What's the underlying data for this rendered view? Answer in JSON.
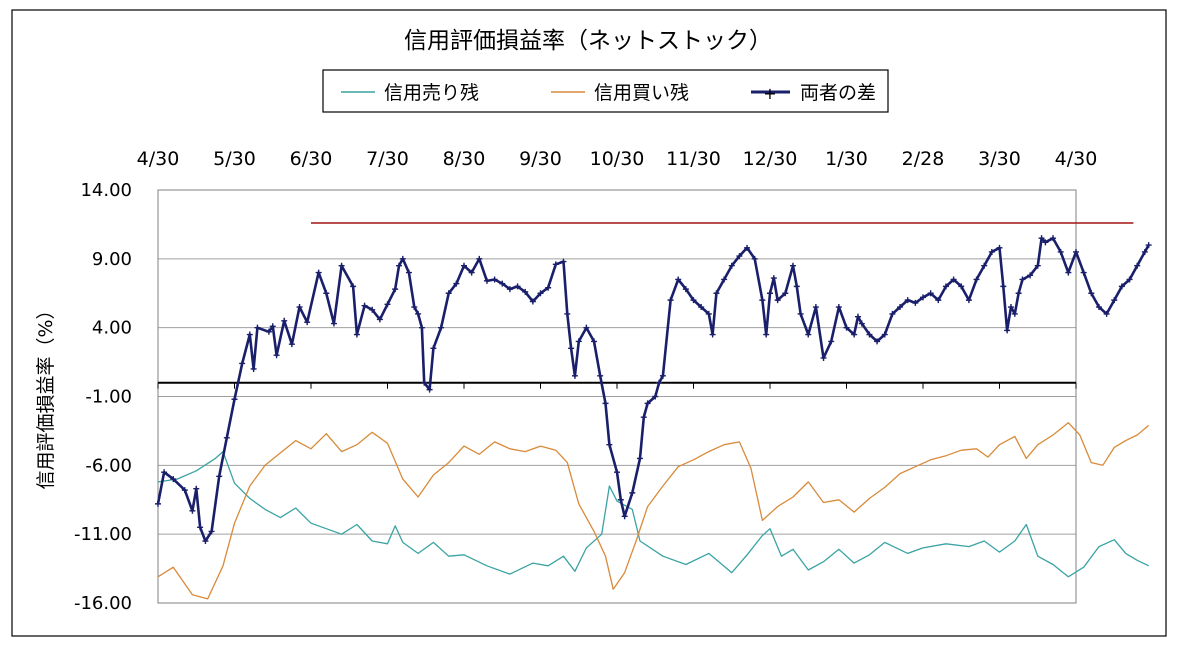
{
  "chart_data": {
    "type": "line",
    "title": "信用評価損益率（ネットストック）",
    "xlabel": "",
    "ylabel": "信用評価損益率（%）",
    "ylim": [
      -16,
      14
    ],
    "yticks": [
      "14.00",
      "9.00",
      "4.00",
      "-1.00",
      "-6.00",
      "-11.00",
      "-16.00"
    ],
    "xticks": [
      "4/30",
      "5/30",
      "6/30",
      "7/30",
      "8/30",
      "9/30",
      "10/30",
      "11/30",
      "12/30",
      "1/30",
      "2/28",
      "3/30",
      "4/30"
    ],
    "legend_position": "top",
    "grid": true,
    "reference_line": {
      "y": 11.6,
      "from_month": 2.0,
      "to_month": 12.75,
      "color": "#a31515"
    },
    "series": [
      {
        "name": "信用売り残",
        "color": "#3aa3a3",
        "marker": "none",
        "points": [
          [
            0.0,
            -7.2
          ],
          [
            0.25,
            -7.0
          ],
          [
            0.5,
            -6.4
          ],
          [
            0.75,
            -5.5
          ],
          [
            0.85,
            -5.0
          ],
          [
            1.0,
            -7.3
          ],
          [
            1.2,
            -8.4
          ],
          [
            1.4,
            -9.2
          ],
          [
            1.6,
            -9.8
          ],
          [
            1.8,
            -9.1
          ],
          [
            2.0,
            -10.2
          ],
          [
            2.2,
            -10.6
          ],
          [
            2.4,
            -11.0
          ],
          [
            2.6,
            -10.3
          ],
          [
            2.8,
            -11.5
          ],
          [
            3.0,
            -11.7
          ],
          [
            3.1,
            -10.4
          ],
          [
            3.2,
            -11.6
          ],
          [
            3.4,
            -12.4
          ],
          [
            3.6,
            -11.6
          ],
          [
            3.8,
            -12.6
          ],
          [
            4.0,
            -12.5
          ],
          [
            4.3,
            -13.3
          ],
          [
            4.6,
            -13.9
          ],
          [
            4.9,
            -13.1
          ],
          [
            5.1,
            -13.3
          ],
          [
            5.3,
            -12.6
          ],
          [
            5.45,
            -13.7
          ],
          [
            5.6,
            -12.0
          ],
          [
            5.8,
            -11.0
          ],
          [
            5.9,
            -7.5
          ],
          [
            6.0,
            -8.6
          ],
          [
            6.2,
            -9.2
          ],
          [
            6.3,
            -11.5
          ],
          [
            6.6,
            -12.6
          ],
          [
            6.9,
            -13.2
          ],
          [
            7.2,
            -12.4
          ],
          [
            7.5,
            -13.8
          ],
          [
            7.7,
            -12.5
          ],
          [
            7.9,
            -11.1
          ],
          [
            8.0,
            -10.6
          ],
          [
            8.15,
            -12.6
          ],
          [
            8.3,
            -12.1
          ],
          [
            8.5,
            -13.6
          ],
          [
            8.7,
            -13.0
          ],
          [
            8.9,
            -12.1
          ],
          [
            9.1,
            -13.1
          ],
          [
            9.3,
            -12.5
          ],
          [
            9.5,
            -11.6
          ],
          [
            9.8,
            -12.4
          ],
          [
            10.0,
            -12.0
          ],
          [
            10.3,
            -11.7
          ],
          [
            10.6,
            -11.9
          ],
          [
            10.8,
            -11.5
          ],
          [
            11.0,
            -12.3
          ],
          [
            11.2,
            -11.5
          ],
          [
            11.35,
            -10.3
          ],
          [
            11.5,
            -12.6
          ],
          [
            11.7,
            -13.2
          ],
          [
            11.9,
            -14.1
          ],
          [
            12.1,
            -13.4
          ],
          [
            12.3,
            -11.9
          ],
          [
            12.5,
            -11.4
          ],
          [
            12.65,
            -12.4
          ],
          [
            12.8,
            -12.9
          ],
          [
            12.95,
            -13.3
          ]
        ]
      },
      {
        "name": "信用買い残",
        "color": "#d98a3a",
        "marker": "none",
        "points": [
          [
            0.0,
            -14.1
          ],
          [
            0.2,
            -13.4
          ],
          [
            0.45,
            -15.4
          ],
          [
            0.65,
            -15.7
          ],
          [
            0.85,
            -13.3
          ],
          [
            1.0,
            -10.2
          ],
          [
            1.2,
            -7.5
          ],
          [
            1.4,
            -6.0
          ],
          [
            1.6,
            -5.1
          ],
          [
            1.8,
            -4.2
          ],
          [
            2.0,
            -4.8
          ],
          [
            2.2,
            -3.7
          ],
          [
            2.4,
            -5.0
          ],
          [
            2.6,
            -4.5
          ],
          [
            2.8,
            -3.6
          ],
          [
            3.0,
            -4.4
          ],
          [
            3.2,
            -7.0
          ],
          [
            3.4,
            -8.3
          ],
          [
            3.6,
            -6.7
          ],
          [
            3.8,
            -5.8
          ],
          [
            4.0,
            -4.6
          ],
          [
            4.2,
            -5.2
          ],
          [
            4.4,
            -4.3
          ],
          [
            4.6,
            -4.8
          ],
          [
            4.8,
            -5.0
          ],
          [
            5.0,
            -4.6
          ],
          [
            5.2,
            -4.9
          ],
          [
            5.35,
            -5.8
          ],
          [
            5.5,
            -8.8
          ],
          [
            5.7,
            -10.8
          ],
          [
            5.85,
            -12.6
          ],
          [
            5.95,
            -15.0
          ],
          [
            6.1,
            -13.8
          ],
          [
            6.25,
            -11.5
          ],
          [
            6.4,
            -9.0
          ],
          [
            6.6,
            -7.5
          ],
          [
            6.8,
            -6.1
          ],
          [
            7.0,
            -5.6
          ],
          [
            7.2,
            -5.0
          ],
          [
            7.4,
            -4.5
          ],
          [
            7.6,
            -4.3
          ],
          [
            7.75,
            -6.2
          ],
          [
            7.9,
            -10.0
          ],
          [
            8.1,
            -9.0
          ],
          [
            8.3,
            -8.3
          ],
          [
            8.5,
            -7.2
          ],
          [
            8.7,
            -8.7
          ],
          [
            8.9,
            -8.5
          ],
          [
            9.1,
            -9.4
          ],
          [
            9.3,
            -8.4
          ],
          [
            9.5,
            -7.6
          ],
          [
            9.7,
            -6.6
          ],
          [
            9.9,
            -6.1
          ],
          [
            10.1,
            -5.6
          ],
          [
            10.3,
            -5.3
          ],
          [
            10.5,
            -4.9
          ],
          [
            10.7,
            -4.8
          ],
          [
            10.85,
            -5.4
          ],
          [
            11.0,
            -4.5
          ],
          [
            11.2,
            -3.9
          ],
          [
            11.35,
            -5.5
          ],
          [
            11.5,
            -4.5
          ],
          [
            11.7,
            -3.8
          ],
          [
            11.9,
            -2.9
          ],
          [
            12.05,
            -3.8
          ],
          [
            12.2,
            -5.8
          ],
          [
            12.35,
            -6.0
          ],
          [
            12.5,
            -4.7
          ],
          [
            12.65,
            -4.2
          ],
          [
            12.8,
            -3.8
          ],
          [
            12.95,
            -3.1
          ]
        ]
      },
      {
        "name": "両者の差",
        "color": "#1a1f6b",
        "marker": "cross",
        "points": [
          [
            0.0,
            -8.8
          ],
          [
            0.08,
            -6.5
          ],
          [
            0.2,
            -7.0
          ],
          [
            0.35,
            -7.8
          ],
          [
            0.45,
            -9.3
          ],
          [
            0.5,
            -7.7
          ],
          [
            0.55,
            -10.5
          ],
          [
            0.62,
            -11.5
          ],
          [
            0.7,
            -10.8
          ],
          [
            0.8,
            -6.8
          ],
          [
            0.9,
            -4.0
          ],
          [
            1.0,
            -1.2
          ],
          [
            1.1,
            1.4
          ],
          [
            1.2,
            3.5
          ],
          [
            1.25,
            1.0
          ],
          [
            1.3,
            4.0
          ],
          [
            1.45,
            3.7
          ],
          [
            1.5,
            4.1
          ],
          [
            1.55,
            2.0
          ],
          [
            1.65,
            4.5
          ],
          [
            1.75,
            2.8
          ],
          [
            1.85,
            5.5
          ],
          [
            1.95,
            4.4
          ],
          [
            2.1,
            8.0
          ],
          [
            2.2,
            6.5
          ],
          [
            2.3,
            4.3
          ],
          [
            2.4,
            8.5
          ],
          [
            2.55,
            7.0
          ],
          [
            2.6,
            3.5
          ],
          [
            2.7,
            5.6
          ],
          [
            2.8,
            5.3
          ],
          [
            2.9,
            4.6
          ],
          [
            3.0,
            5.7
          ],
          [
            3.1,
            6.8
          ],
          [
            3.15,
            8.5
          ],
          [
            3.2,
            9.0
          ],
          [
            3.28,
            8.0
          ],
          [
            3.35,
            5.5
          ],
          [
            3.4,
            5.0
          ],
          [
            3.45,
            4.0
          ],
          [
            3.48,
            0.0
          ],
          [
            3.55,
            -0.5
          ],
          [
            3.6,
            2.5
          ],
          [
            3.7,
            4.0
          ],
          [
            3.8,
            6.5
          ],
          [
            3.9,
            7.2
          ],
          [
            4.0,
            8.5
          ],
          [
            4.1,
            8.0
          ],
          [
            4.2,
            9.0
          ],
          [
            4.3,
            7.4
          ],
          [
            4.4,
            7.5
          ],
          [
            4.5,
            7.2
          ],
          [
            4.6,
            6.8
          ],
          [
            4.7,
            7.0
          ],
          [
            4.8,
            6.6
          ],
          [
            4.9,
            5.9
          ],
          [
            5.0,
            6.5
          ],
          [
            5.1,
            6.9
          ],
          [
            5.2,
            8.6
          ],
          [
            5.3,
            8.8
          ],
          [
            5.35,
            5.0
          ],
          [
            5.4,
            2.5
          ],
          [
            5.45,
            0.5
          ],
          [
            5.5,
            3.0
          ],
          [
            5.6,
            4.0
          ],
          [
            5.7,
            3.0
          ],
          [
            5.78,
            0.5
          ],
          [
            5.85,
            -1.5
          ],
          [
            5.9,
            -4.5
          ],
          [
            6.0,
            -6.5
          ],
          [
            6.05,
            -8.5
          ],
          [
            6.1,
            -9.7
          ],
          [
            6.2,
            -8.0
          ],
          [
            6.3,
            -5.5
          ],
          [
            6.35,
            -2.5
          ],
          [
            6.4,
            -1.5
          ],
          [
            6.5,
            -1.0
          ],
          [
            6.55,
            0.0
          ],
          [
            6.6,
            0.5
          ],
          [
            6.7,
            6.0
          ],
          [
            6.8,
            7.5
          ],
          [
            6.9,
            6.8
          ],
          [
            7.0,
            6.0
          ],
          [
            7.1,
            5.5
          ],
          [
            7.2,
            5.0
          ],
          [
            7.25,
            3.5
          ],
          [
            7.3,
            6.5
          ],
          [
            7.4,
            7.5
          ],
          [
            7.5,
            8.5
          ],
          [
            7.6,
            9.2
          ],
          [
            7.7,
            9.8
          ],
          [
            7.8,
            9.0
          ],
          [
            7.9,
            6.0
          ],
          [
            7.95,
            3.5
          ],
          [
            8.0,
            6.5
          ],
          [
            8.05,
            7.6
          ],
          [
            8.1,
            6.0
          ],
          [
            8.2,
            6.5
          ],
          [
            8.3,
            8.5
          ],
          [
            8.35,
            7.0
          ],
          [
            8.4,
            5.0
          ],
          [
            8.5,
            3.5
          ],
          [
            8.6,
            5.5
          ],
          [
            8.7,
            1.8
          ],
          [
            8.8,
            3.0
          ],
          [
            8.9,
            5.5
          ],
          [
            9.0,
            4.0
          ],
          [
            9.1,
            3.5
          ],
          [
            9.15,
            4.8
          ],
          [
            9.2,
            4.3
          ],
          [
            9.3,
            3.5
          ],
          [
            9.4,
            3.0
          ],
          [
            9.5,
            3.5
          ],
          [
            9.6,
            5.0
          ],
          [
            9.7,
            5.5
          ],
          [
            9.8,
            6.0
          ],
          [
            9.9,
            5.8
          ],
          [
            10.0,
            6.2
          ],
          [
            10.1,
            6.5
          ],
          [
            10.2,
            6.0
          ],
          [
            10.3,
            7.0
          ],
          [
            10.4,
            7.5
          ],
          [
            10.5,
            7.0
          ],
          [
            10.6,
            6.0
          ],
          [
            10.7,
            7.5
          ],
          [
            10.8,
            8.5
          ],
          [
            10.9,
            9.5
          ],
          [
            11.0,
            9.8
          ],
          [
            11.05,
            7.0
          ],
          [
            11.1,
            3.8
          ],
          [
            11.15,
            5.5
          ],
          [
            11.2,
            5.0
          ],
          [
            11.25,
            6.5
          ],
          [
            11.3,
            7.5
          ],
          [
            11.4,
            7.8
          ],
          [
            11.5,
            8.5
          ],
          [
            11.55,
            10.5
          ],
          [
            11.6,
            10.2
          ],
          [
            11.7,
            10.5
          ],
          [
            11.8,
            9.5
          ],
          [
            11.9,
            8.0
          ],
          [
            12.0,
            9.5
          ],
          [
            12.1,
            8.0
          ],
          [
            12.2,
            6.5
          ],
          [
            12.3,
            5.5
          ],
          [
            12.4,
            5.0
          ],
          [
            12.5,
            6.0
          ],
          [
            12.6,
            7.0
          ],
          [
            12.7,
            7.5
          ],
          [
            12.8,
            8.5
          ],
          [
            12.9,
            9.5
          ],
          [
            12.95,
            10.0
          ]
        ]
      }
    ]
  }
}
